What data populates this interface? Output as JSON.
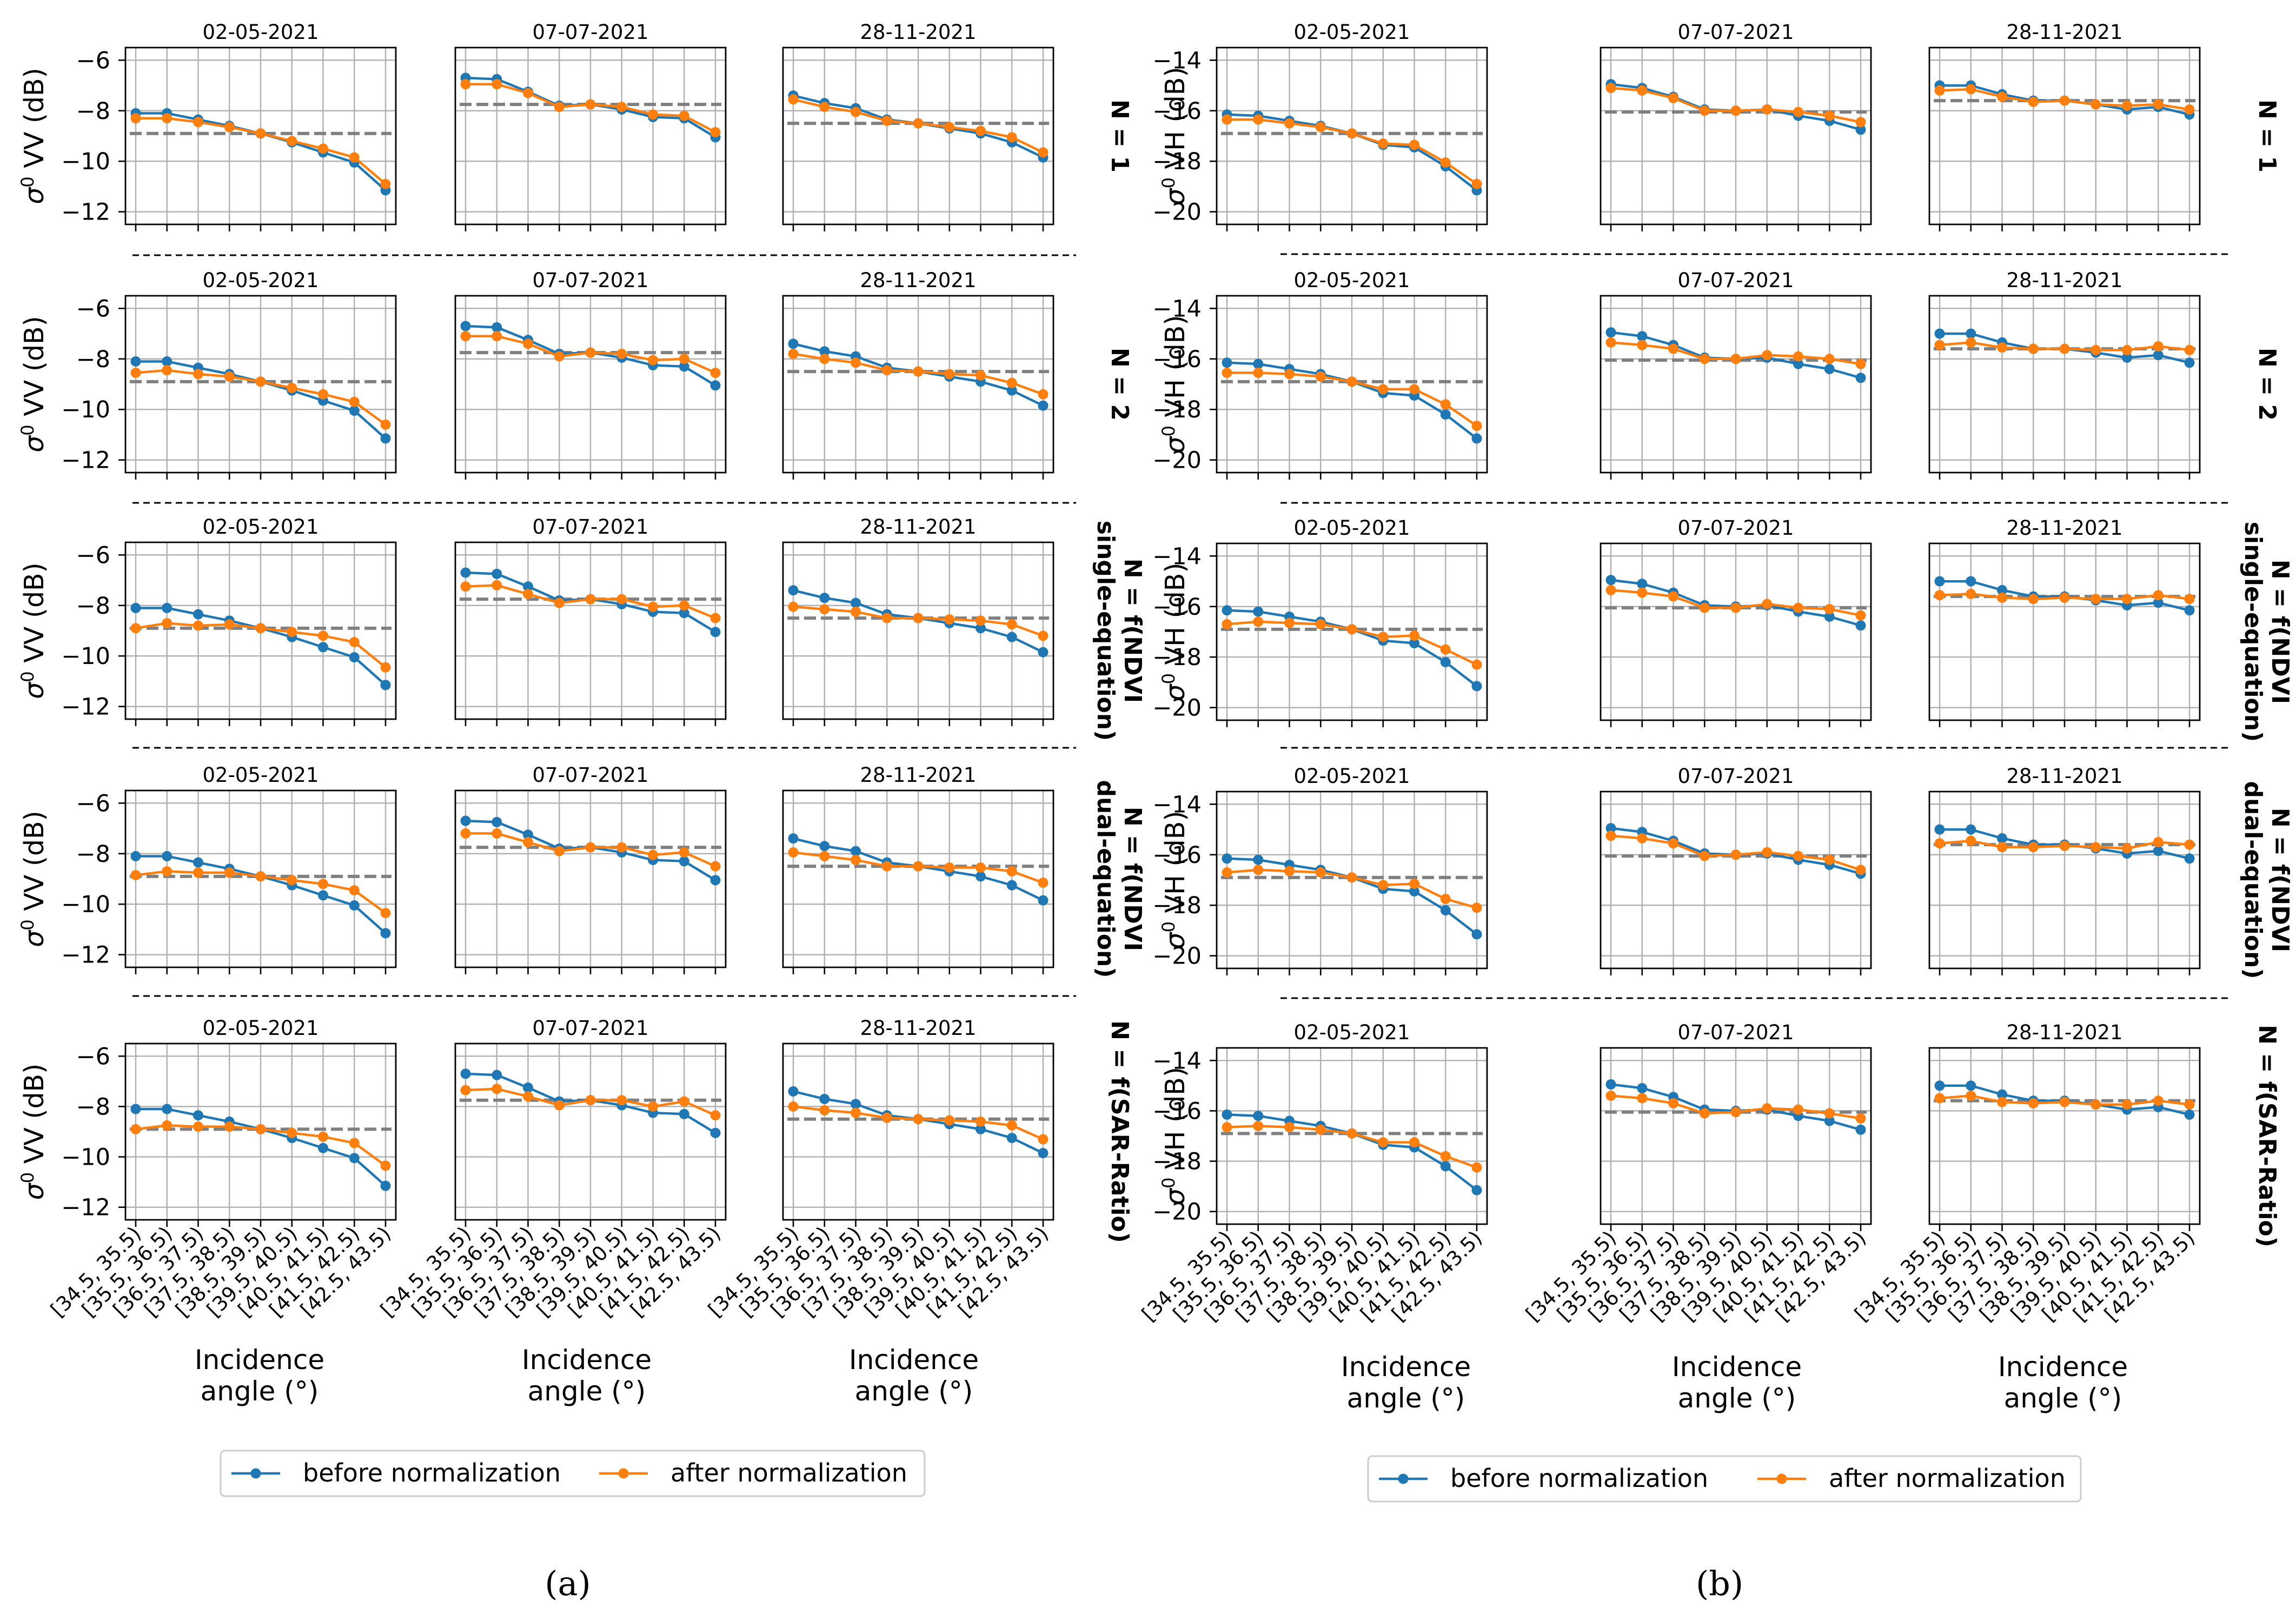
{
  "figure": {
    "panel_labels": [
      "(a)",
      "(b)"
    ],
    "legend": {
      "before_label": "before normalization",
      "after_label": "after normalization",
      "before_color": "#1f77b4",
      "after_color": "#ff7f0e",
      "reference_color": "#808080"
    },
    "xlabel_line1": "Incidence",
    "xlabel_line2": "angle (°)",
    "row_labels": [
      [
        "N = 1"
      ],
      [
        "N = 2"
      ],
      [
        "N = f(NDVI",
        "single-equation)"
      ],
      [
        "N = f(NDVI",
        "dual-equation)"
      ],
      [
        "N = f(SAR-Ratio)"
      ]
    ]
  },
  "chart_data": {
    "type": "line",
    "x_categories": [
      "[34.5, 35.5)",
      "[35.5, 36.5)",
      "[36.5, 37.5)",
      "[37.5, 38.5)",
      "[38.5, 39.5)",
      "[39.5, 40.5)",
      "[40.5, 41.5)",
      "[41.5, 42.5)",
      "[42.5, 43.5)"
    ],
    "dates": [
      "02-05-2021",
      "07-07-2021",
      "28-11-2021"
    ],
    "panels": [
      {
        "label": "(a)",
        "polarization": "VV",
        "ylabel": "σ0 VV (dB)",
        "ylim": [
          -12.5,
          -5.5
        ],
        "yticks": [
          -12,
          -10,
          -8,
          -6
        ],
        "before": [
          [
            -8.1,
            -8.1,
            -8.35,
            -8.6,
            -8.9,
            -9.25,
            -9.65,
            -10.05,
            -11.15
          ],
          [
            -6.7,
            -6.75,
            -7.25,
            -7.8,
            -7.75,
            -7.95,
            -8.25,
            -8.3,
            -9.05
          ],
          [
            -7.4,
            -7.7,
            -7.9,
            -8.35,
            -8.5,
            -8.7,
            -8.9,
            -9.25,
            -9.85
          ]
        ],
        "reference": [
          -8.9,
          -7.75,
          -8.5
        ],
        "after": [
          [
            [
              -8.3,
              -8.3,
              -8.45,
              -8.65,
              -8.9,
              -9.2,
              -9.5,
              -9.85,
              -10.9
            ],
            [
              -6.95,
              -6.95,
              -7.3,
              -7.85,
              -7.75,
              -7.85,
              -8.15,
              -8.2,
              -8.85
            ],
            [
              -7.55,
              -7.85,
              -8.05,
              -8.4,
              -8.5,
              -8.65,
              -8.8,
              -9.05,
              -9.65
            ]
          ],
          [
            [
              -8.55,
              -8.45,
              -8.6,
              -8.7,
              -8.9,
              -9.15,
              -9.4,
              -9.7,
              -10.6
            ],
            [
              -7.1,
              -7.1,
              -7.4,
              -7.9,
              -7.75,
              -7.8,
              -8.05,
              -8.0,
              -8.55
            ],
            [
              -7.8,
              -8.0,
              -8.15,
              -8.45,
              -8.5,
              -8.6,
              -8.65,
              -8.95,
              -9.4
            ]
          ],
          [
            [
              -8.9,
              -8.7,
              -8.8,
              -8.75,
              -8.9,
              -9.05,
              -9.2,
              -9.45,
              -10.45
            ],
            [
              -7.25,
              -7.2,
              -7.55,
              -7.9,
              -7.75,
              -7.75,
              -8.05,
              -8.0,
              -8.5
            ],
            [
              -8.05,
              -8.15,
              -8.25,
              -8.5,
              -8.5,
              -8.55,
              -8.6,
              -8.75,
              -9.2
            ]
          ],
          [
            [
              -8.85,
              -8.7,
              -8.75,
              -8.75,
              -8.9,
              -9.05,
              -9.2,
              -9.45,
              -10.35
            ],
            [
              -7.2,
              -7.2,
              -7.55,
              -7.9,
              -7.75,
              -7.75,
              -8.05,
              -7.95,
              -8.5
            ],
            [
              -7.95,
              -8.1,
              -8.25,
              -8.5,
              -8.5,
              -8.55,
              -8.55,
              -8.7,
              -9.15
            ]
          ],
          [
            [
              -8.9,
              -8.75,
              -8.8,
              -8.8,
              -8.9,
              -9.05,
              -9.2,
              -9.45,
              -10.35
            ],
            [
              -7.35,
              -7.3,
              -7.6,
              -7.95,
              -7.75,
              -7.75,
              -8.0,
              -7.8,
              -8.35
            ],
            [
              -8.0,
              -8.15,
              -8.25,
              -8.45,
              -8.5,
              -8.55,
              -8.6,
              -8.75,
              -9.3
            ]
          ]
        ]
      },
      {
        "label": "(b)",
        "polarization": "VH",
        "ylabel": "σ0 VH (dB)",
        "ylim": [
          -20.5,
          -13.5
        ],
        "yticks": [
          -20,
          -18,
          -16,
          -14
        ],
        "before": [
          [
            -16.15,
            -16.2,
            -16.4,
            -16.6,
            -16.9,
            -17.35,
            -17.45,
            -18.2,
            -19.15
          ],
          [
            -14.95,
            -15.1,
            -15.45,
            -15.95,
            -16.0,
            -15.95,
            -16.2,
            -16.4,
            -16.75
          ],
          [
            -15.0,
            -15.0,
            -15.35,
            -15.6,
            -15.6,
            -15.75,
            -15.95,
            -15.85,
            -16.15
          ]
        ],
        "reference": [
          -16.9,
          -16.05,
          -15.6
        ],
        "after": [
          [
            [
              -16.35,
              -16.35,
              -16.5,
              -16.65,
              -16.9,
              -17.3,
              -17.35,
              -18.05,
              -18.9
            ],
            [
              -15.1,
              -15.2,
              -15.5,
              -16.0,
              -16.0,
              -15.95,
              -16.05,
              -16.2,
              -16.45
            ],
            [
              -15.2,
              -15.15,
              -15.45,
              -15.65,
              -15.6,
              -15.75,
              -15.8,
              -15.75,
              -15.95
            ]
          ],
          [
            [
              -16.55,
              -16.55,
              -16.6,
              -16.7,
              -16.9,
              -17.2,
              -17.2,
              -17.8,
              -18.65
            ],
            [
              -15.35,
              -15.45,
              -15.6,
              -16.0,
              -16.0,
              -15.85,
              -15.9,
              -16.0,
              -16.2
            ],
            [
              -15.45,
              -15.35,
              -15.55,
              -15.6,
              -15.6,
              -15.65,
              -15.65,
              -15.5,
              -15.65
            ]
          ],
          [
            [
              -16.7,
              -16.6,
              -16.65,
              -16.7,
              -16.9,
              -17.2,
              -17.15,
              -17.7,
              -18.3
            ],
            [
              -15.35,
              -15.45,
              -15.6,
              -16.05,
              -16.05,
              -15.9,
              -16.05,
              -16.1,
              -16.35
            ],
            [
              -15.55,
              -15.5,
              -15.65,
              -15.7,
              -15.65,
              -15.7,
              -15.7,
              -15.55,
              -15.7
            ]
          ],
          [
            [
              -16.7,
              -16.6,
              -16.65,
              -16.7,
              -16.9,
              -17.2,
              -17.15,
              -17.75,
              -18.1
            ],
            [
              -15.25,
              -15.35,
              -15.55,
              -16.05,
              -16.0,
              -15.9,
              -16.05,
              -16.2,
              -16.6
            ],
            [
              -15.55,
              -15.45,
              -15.7,
              -15.7,
              -15.65,
              -15.7,
              -15.75,
              -15.5,
              -15.6
            ]
          ],
          [
            [
              -16.65,
              -16.6,
              -16.65,
              -16.75,
              -16.9,
              -17.25,
              -17.25,
              -17.8,
              -18.25
            ],
            [
              -15.4,
              -15.5,
              -15.7,
              -16.1,
              -16.05,
              -15.9,
              -15.95,
              -16.1,
              -16.3
            ],
            [
              -15.5,
              -15.4,
              -15.65,
              -15.7,
              -15.65,
              -15.75,
              -15.75,
              -15.6,
              -15.75
            ]
          ]
        ]
      }
    ]
  }
}
